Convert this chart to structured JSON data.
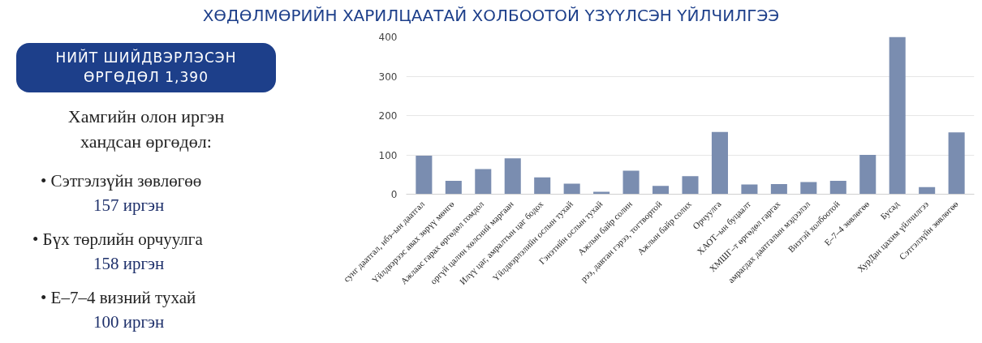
{
  "chart_data": {
    "type": "bar",
    "title": "ХӨДӨЛМӨРИЙН ХАРИЛЦААТАЙ ХОЛБООТОЙ ҮЗҮҮЛСЭН ҮЙЛЧИЛГЭЭ",
    "categories": [
      "сунг даатгал, нбз–ын даатгал",
      "Үйлдвэрээс авах зөрүү мөнгө",
      "Ажлаас гарах өргөдөл гомдол",
      "оргүй цалин хөлсний маргаан",
      "Илүү цаг, амралтын цаг бодох",
      "Үйлдвэрлэлийн ослын тухай",
      "Гэнэтийн ослын тухай",
      "Ажлын байр солин",
      "рээ, давтан гэрээ, тогтвортой",
      "Ажлын байр солих",
      "Орчуулга",
      "ХАОТ–ын буцаалт",
      "ХМШГ–т өргөдөл гаргах",
      "амрагдах даатгалын мэдээлэл",
      "Визтэй холбоотой",
      "Е–7–4 зөвлөгөө",
      "Бусад",
      "ХурДан цахим үйлчилгээ",
      "Сэтгэлзүйн зөвлөгөө"
    ],
    "values": [
      98,
      34,
      64,
      91,
      43,
      27,
      6,
      60,
      21,
      46,
      158,
      25,
      26,
      31,
      34,
      100,
      400,
      18,
      157
    ],
    "color": "#7a8db0",
    "ylim": [
      0,
      400
    ],
    "yticks": [
      0,
      100,
      200,
      300,
      400
    ],
    "grid": "y",
    "annotations": [
      "НИЙТ ШИЙДВЭРЛЭСЭН ӨРГӨДӨЛ 1,390",
      "Хамгийн олон иргэн хандсан өргөдөл:",
      "• Сэтгэлзүйн зөвлөгөө",
      "157 иргэн",
      "• Бүх төрлийн орчуулга",
      "158 иргэн",
      "• Е–7–4 визний тухай",
      "100 иргэн"
    ]
  }
}
